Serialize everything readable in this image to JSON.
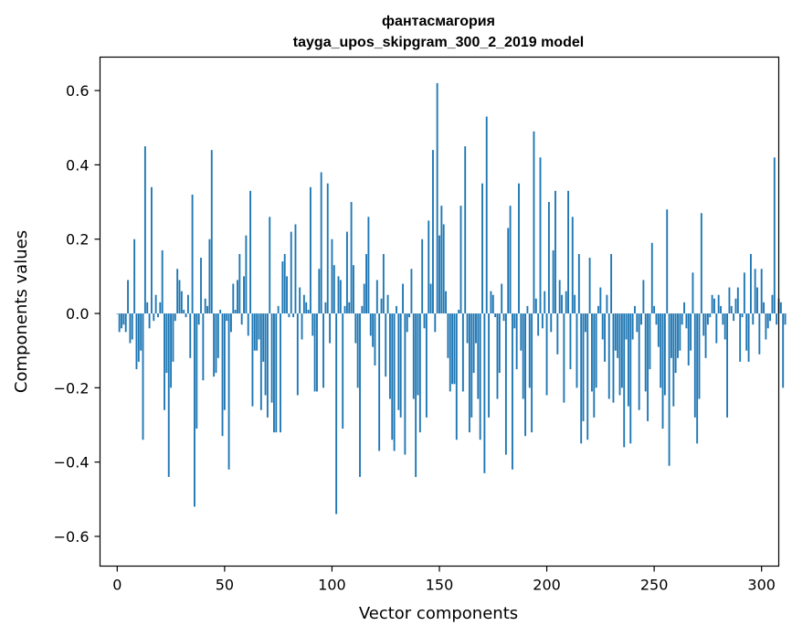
{
  "chart_data": {
    "type": "bar",
    "title": "фантасмагория",
    "subtitle": "tayga_upos_skipgram_300_2_2019 model",
    "xlabel": "Vector components",
    "ylabel": "Components values",
    "xlim": [
      -8,
      308
    ],
    "ylim": [
      -0.68,
      0.69
    ],
    "xticks": [
      0,
      50,
      100,
      150,
      200,
      250,
      300
    ],
    "yticks": [
      -0.6,
      -0.4,
      -0.2,
      0.0,
      0.2,
      0.4,
      0.6
    ],
    "xtick_labels": [
      "0",
      "50",
      "100",
      "150",
      "200",
      "250",
      "300"
    ],
    "ytick_labels": [
      "−0.6",
      "−0.4",
      "−0.2",
      "0.0",
      "0.2",
      "0.4",
      "0.6"
    ],
    "grid": false,
    "color": "#1f77b4",
    "x_start": 0,
    "values": [
      0.0,
      -0.05,
      -0.04,
      -0.03,
      -0.05,
      0.09,
      -0.08,
      -0.07,
      0.2,
      -0.15,
      -0.13,
      -0.1,
      -0.34,
      0.45,
      0.03,
      -0.04,
      0.34,
      -0.02,
      0.05,
      -0.01,
      0.03,
      0.17,
      -0.26,
      -0.16,
      -0.44,
      -0.2,
      -0.13,
      -0.02,
      0.12,
      0.09,
      0.06,
      0.01,
      -0.01,
      0.05,
      -0.12,
      0.32,
      -0.52,
      -0.31,
      -0.03,
      0.15,
      -0.18,
      0.04,
      0.02,
      0.2,
      0.44,
      -0.17,
      -0.16,
      -0.12,
      0.01,
      -0.33,
      -0.26,
      -0.02,
      -0.42,
      -0.05,
      0.08,
      0.01,
      0.09,
      0.16,
      -0.03,
      0.1,
      0.21,
      -0.06,
      0.33,
      -0.25,
      -0.1,
      -0.1,
      -0.07,
      -0.26,
      -0.13,
      -0.22,
      -0.28,
      0.26,
      -0.24,
      -0.32,
      -0.32,
      0.02,
      -0.32,
      0.14,
      0.16,
      0.1,
      -0.01,
      0.22,
      -0.01,
      0.24,
      -0.22,
      0.07,
      -0.07,
      0.05,
      0.03,
      0.01,
      0.34,
      -0.06,
      -0.21,
      -0.21,
      0.12,
      0.38,
      -0.2,
      0.03,
      0.35,
      -0.08,
      0.2,
      0.13,
      -0.54,
      0.1,
      0.09,
      -0.31,
      0.02,
      0.22,
      0.03,
      0.3,
      0.13,
      -0.08,
      -0.2,
      -0.44,
      0.02,
      0.08,
      0.16,
      0.26,
      -0.06,
      -0.09,
      -0.14,
      0.09,
      -0.37,
      0.04,
      0.16,
      -0.17,
      0.05,
      -0.23,
      -0.34,
      -0.37,
      0.02,
      -0.26,
      -0.28,
      0.08,
      -0.38,
      -0.05,
      -0.01,
      0.12,
      -0.23,
      -0.44,
      -0.22,
      -0.32,
      0.2,
      -0.04,
      -0.28,
      0.25,
      0.08,
      0.44,
      -0.05,
      0.62,
      0.21,
      0.29,
      0.24,
      0.06,
      -0.12,
      -0.21,
      -0.19,
      -0.19,
      -0.34,
      0.01,
      0.29,
      -0.21,
      0.45,
      -0.08,
      -0.32,
      -0.28,
      -0.16,
      -0.08,
      -0.23,
      -0.34,
      0.35,
      -0.43,
      0.53,
      -0.28,
      0.06,
      0.05,
      -0.01,
      -0.23,
      -0.16,
      0.08,
      -0.02,
      -0.38,
      0.23,
      0.29,
      -0.42,
      -0.04,
      -0.15,
      0.35,
      -0.1,
      -0.23,
      -0.33,
      0.02,
      -0.2,
      -0.32,
      0.49,
      0.04,
      -0.06,
      0.42,
      -0.04,
      0.06,
      -0.22,
      0.3,
      -0.05,
      0.17,
      0.33,
      -0.11,
      0.09,
      0.05,
      -0.24,
      0.06,
      0.33,
      -0.15,
      0.26,
      0.05,
      -0.2,
      0.16,
      -0.35,
      -0.29,
      -0.05,
      -0.34,
      0.15,
      -0.21,
      -0.28,
      -0.2,
      0.02,
      0.07,
      -0.07,
      -0.13,
      0.05,
      -0.23,
      0.16,
      -0.24,
      -0.1,
      -0.12,
      -0.22,
      -0.2,
      -0.36,
      -0.07,
      -0.25,
      -0.35,
      -0.07,
      0.02,
      -0.05,
      -0.26,
      -0.03,
      0.09,
      -0.21,
      -0.29,
      -0.15,
      0.19,
      0.02,
      -0.03,
      -0.09,
      -0.2,
      -0.31,
      -0.22,
      0.28,
      -0.41,
      -0.12,
      -0.25,
      -0.16,
      -0.12,
      -0.1,
      -0.03,
      0.03,
      -0.04,
      -0.14,
      -0.1,
      0.11,
      -0.28,
      -0.35,
      -0.23,
      0.27,
      -0.06,
      -0.12,
      -0.03,
      -0.01,
      0.05,
      0.04,
      -0.08,
      0.05,
      0.02,
      -0.03,
      -0.07,
      -0.28,
      0.07,
      0.02,
      -0.02,
      0.04,
      0.07,
      -0.13,
      -0.01,
      0.11,
      -0.1,
      -0.13,
      0.16,
      -0.03,
      0.12,
      0.07,
      -0.11,
      0.12,
      0.03,
      -0.07,
      -0.04,
      -0.02,
      0.05,
      0.42,
      -0.03,
      0.04,
      0.03,
      -0.2,
      -0.03
    ]
  }
}
